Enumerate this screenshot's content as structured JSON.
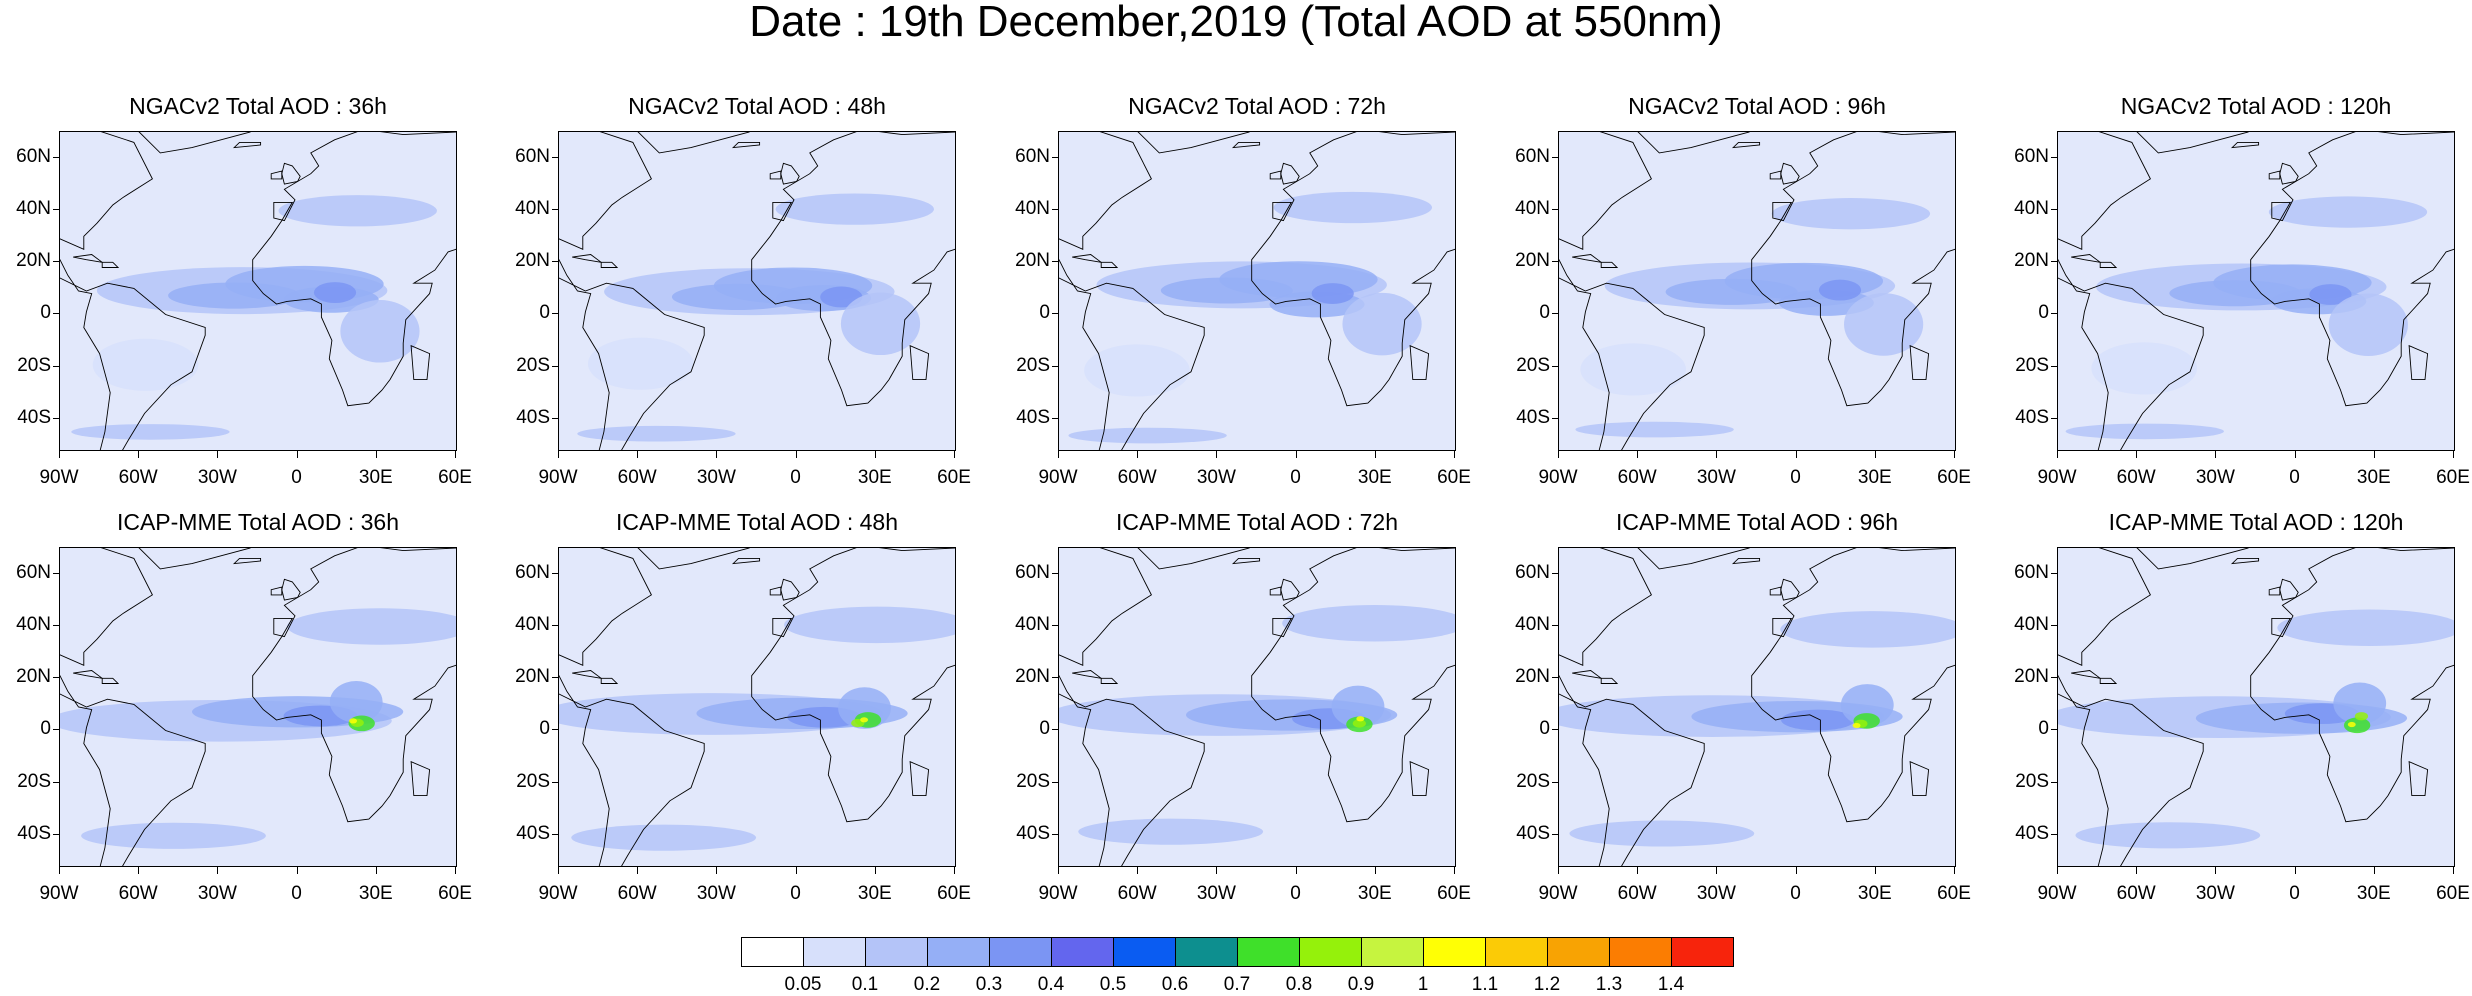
{
  "title": "Date : 19th December,2019 (Total AOD at 550nm)",
  "rows": [
    {
      "model": "NGACv2",
      "panels": [
        {
          "title": "NGACv2 Total AOD : 36h",
          "lead": "36h"
        },
        {
          "title": "NGACv2 Total AOD : 48h",
          "lead": "48h"
        },
        {
          "title": "NGACv2 Total AOD : 72h",
          "lead": "72h"
        },
        {
          "title": "NGACv2 Total AOD : 96h",
          "lead": "96h"
        },
        {
          "title": "NGACv2 Total AOD : 120h",
          "lead": "120h"
        }
      ]
    },
    {
      "model": "ICAP-MME",
      "panels": [
        {
          "title": "ICAP-MME Total AOD : 36h",
          "lead": "36h"
        },
        {
          "title": "ICAP-MME Total AOD : 48h",
          "lead": "48h"
        },
        {
          "title": "ICAP-MME Total AOD : 72h",
          "lead": "72h"
        },
        {
          "title": "ICAP-MME Total AOD : 96h",
          "lead": "96h"
        },
        {
          "title": "ICAP-MME Total AOD : 120h",
          "lead": "120h"
        }
      ]
    }
  ],
  "lat_labels": [
    "60N",
    "40N",
    "20N",
    "0",
    "20S",
    "40S"
  ],
  "lon_labels": [
    "90W",
    "60W",
    "30W",
    "0",
    "30E",
    "60E"
  ],
  "colorbar": {
    "labels": [
      "0.05",
      "0.1",
      "0.2",
      "0.3",
      "0.4",
      "0.5",
      "0.6",
      "0.7",
      "0.8",
      "0.9",
      "1",
      "1.1",
      "1.2",
      "1.3",
      "1.4"
    ],
    "colors": [
      "#ffffff",
      "#d7e0fb",
      "#b4c4f8",
      "#95aff6",
      "#7b95f3",
      "#6366ee",
      "#0a5cf2",
      "#0d8f8f",
      "#3fe02a",
      "#95f10b",
      "#c6f43f",
      "#ffff05",
      "#fbcb06",
      "#f8a303",
      "#fb7d02",
      "#f7240c"
    ]
  }
}
